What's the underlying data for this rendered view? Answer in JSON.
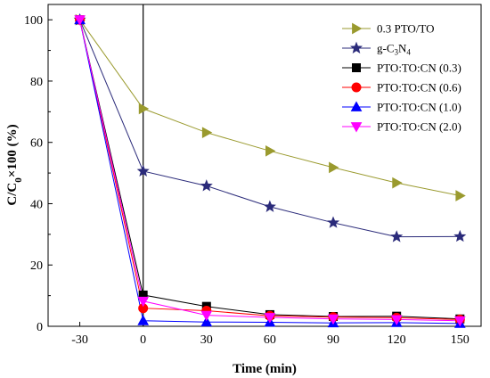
{
  "chart_data": {
    "type": "line",
    "title": "",
    "xlabel": "Time (min)",
    "ylabel": "C/C",
    "ylabel_sub": "0",
    "ylabel_suffix": "×100 (%)",
    "x": [
      -30,
      0,
      30,
      60,
      90,
      120,
      150
    ],
    "xlim": [
      -45,
      160
    ],
    "ylim": [
      0,
      105
    ],
    "xticks": [
      "-30",
      "0",
      "30",
      "60",
      "90",
      "120",
      "150"
    ],
    "yticks": [
      "0",
      "20",
      "40",
      "60",
      "80",
      "100"
    ],
    "grid": false,
    "legend_position": "top-right",
    "reference_line_x": 0,
    "series": [
      {
        "name": "0.3 PTO/TO",
        "color": "#9a9a2e",
        "marker": "triangle-right",
        "values": [
          100,
          71,
          63.2,
          57.2,
          51.8,
          46.8,
          42.6
        ]
      },
      {
        "name": "g-C3N4",
        "name_parts": [
          "g-C",
          "3",
          "N",
          "4"
        ],
        "color": "#2b2b7a",
        "marker": "star",
        "values": [
          100,
          50.6,
          45.8,
          39,
          33.8,
          29.2,
          29.3
        ]
      },
      {
        "name": "PTO:TO:CN (0.3)",
        "color": "#000000",
        "marker": "square",
        "values": [
          100,
          10.2,
          6.5,
          3.8,
          3.2,
          3.3,
          2.4
        ]
      },
      {
        "name": "PTO:TO:CN (0.6)",
        "color": "#ff0000",
        "marker": "circle",
        "values": [
          100,
          5.9,
          5.1,
          3.4,
          3,
          2.8,
          2.2
        ]
      },
      {
        "name": "PTO:TO:CN (1.0)",
        "color": "#0000ff",
        "marker": "triangle-up",
        "values": [
          100,
          1.8,
          1.4,
          1.3,
          1.1,
          1.2,
          0.9
        ]
      },
      {
        "name": "PTO:TO:CN (2.0)",
        "color": "#ff00ff",
        "marker": "triangle-down",
        "values": [
          100,
          8.2,
          3.6,
          2.9,
          2.4,
          2.2,
          1.8
        ]
      }
    ]
  }
}
